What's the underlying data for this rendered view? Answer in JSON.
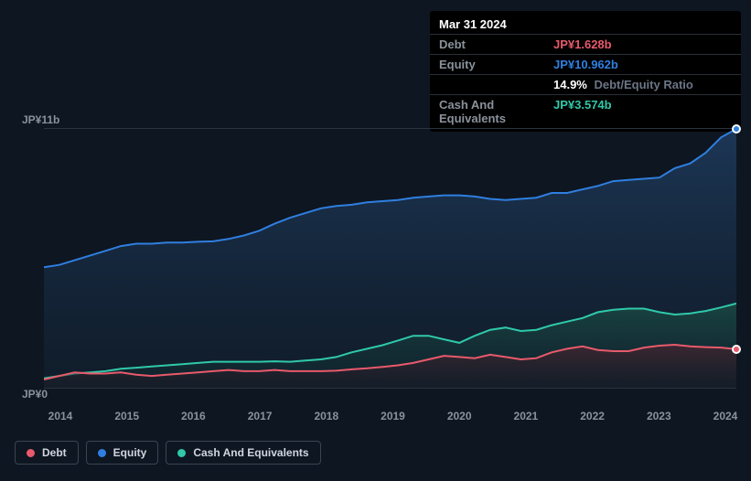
{
  "colors": {
    "background": "#0e1621",
    "grid": "#2a333f",
    "text_muted": "#8a929b",
    "text": "#cfd6e0",
    "debt": "#e85a6b",
    "equity": "#2f7fe0",
    "cash": "#2fc9a9",
    "tooltip_bg": "#000000",
    "white": "#ffffff"
  },
  "chart": {
    "type": "area-line",
    "y_label_top": "JP¥11b",
    "y_label_bottom": "JP¥0",
    "ylim": [
      0,
      11
    ],
    "x_ticks": [
      "2014",
      "2015",
      "2016",
      "2017",
      "2018",
      "2019",
      "2020",
      "2021",
      "2022",
      "2023",
      "2024"
    ],
    "series": {
      "equity": {
        "name": "Equity",
        "color": "#2f7fe0",
        "fill_from": "#1e3a5c",
        "fill_to": "#122232",
        "values": [
          5.1,
          5.2,
          5.4,
          5.6,
          5.8,
          6.0,
          6.1,
          6.1,
          6.15,
          6.15,
          6.18,
          6.2,
          6.3,
          6.45,
          6.65,
          6.95,
          7.2,
          7.4,
          7.6,
          7.7,
          7.75,
          7.85,
          7.9,
          7.95,
          8.05,
          8.1,
          8.15,
          8.15,
          8.1,
          8.0,
          7.95,
          8.0,
          8.05,
          8.25,
          8.25,
          8.4,
          8.55,
          8.75,
          8.8,
          8.85,
          8.9,
          9.3,
          9.5,
          9.95,
          10.6,
          10.96
        ]
      },
      "cash": {
        "name": "Cash And Equivalents",
        "color": "#2fc9a9",
        "fill_from": "#1a4a44",
        "fill_to": "#102830",
        "values": [
          0.4,
          0.5,
          0.6,
          0.65,
          0.7,
          0.8,
          0.85,
          0.9,
          0.95,
          1.0,
          1.05,
          1.1,
          1.1,
          1.1,
          1.1,
          1.12,
          1.1,
          1.15,
          1.2,
          1.3,
          1.5,
          1.65,
          1.8,
          2.0,
          2.2,
          2.2,
          2.05,
          1.9,
          2.2,
          2.45,
          2.55,
          2.4,
          2.45,
          2.65,
          2.8,
          2.95,
          3.2,
          3.3,
          3.35,
          3.35,
          3.2,
          3.1,
          3.15,
          3.25,
          3.4,
          3.57
        ]
      },
      "debt": {
        "name": "Debt",
        "color": "#e85a6b",
        "fill_from": "#4a2430",
        "fill_to": "#1e1620",
        "values": [
          0.35,
          0.5,
          0.65,
          0.6,
          0.6,
          0.65,
          0.55,
          0.5,
          0.55,
          0.6,
          0.65,
          0.7,
          0.75,
          0.7,
          0.7,
          0.75,
          0.7,
          0.7,
          0.7,
          0.72,
          0.78,
          0.82,
          0.88,
          0.95,
          1.05,
          1.2,
          1.35,
          1.3,
          1.25,
          1.4,
          1.3,
          1.2,
          1.25,
          1.5,
          1.65,
          1.75,
          1.6,
          1.55,
          1.55,
          1.7,
          1.78,
          1.82,
          1.75,
          1.72,
          1.7,
          1.63
        ]
      }
    },
    "markers": [
      {
        "series": "equity",
        "x_index": 45,
        "color": "#2f7fe0"
      },
      {
        "series": "debt",
        "x_index": 45,
        "color": "#e85a6b"
      }
    ]
  },
  "tooltip": {
    "date": "Mar 31 2024",
    "rows": [
      {
        "label": "Debt",
        "value": "JP¥1.628b",
        "color": "#e85a6b"
      },
      {
        "label": "Equity",
        "value": "JP¥10.962b",
        "color": "#2f7fe0"
      },
      {
        "label": "",
        "value": "14.9%",
        "suffix": "Debt/Equity Ratio",
        "color": "#ffffff"
      },
      {
        "label": "Cash And Equivalents",
        "value": "JP¥3.574b",
        "color": "#2fc9a9"
      }
    ]
  },
  "legend": [
    {
      "name": "Debt",
      "color": "#e85a6b"
    },
    {
      "name": "Equity",
      "color": "#2f7fe0"
    },
    {
      "name": "Cash And Equivalents",
      "color": "#2fc9a9"
    }
  ]
}
